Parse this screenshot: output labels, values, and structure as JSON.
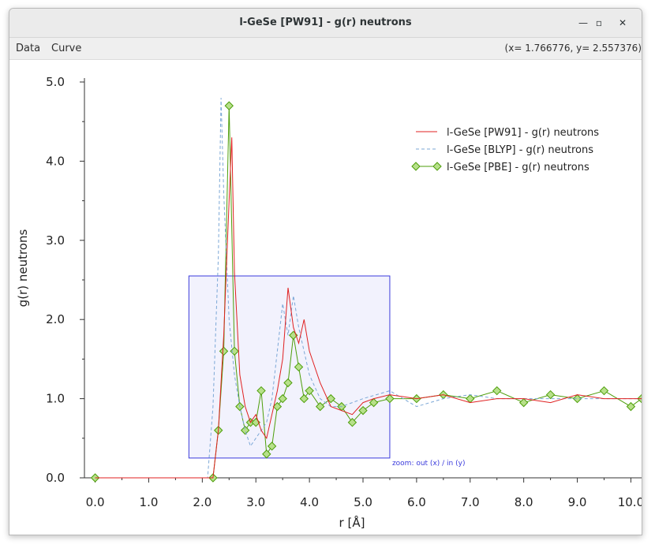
{
  "window": {
    "title": "l-GeSe [PW91] - g(r) neutrons"
  },
  "menu": {
    "items": [
      "Data",
      "Curve"
    ]
  },
  "status": {
    "coords": "(x= 1.766776, y= 2.557376)"
  },
  "zoom_label": "zoom: out (x) / in (y)",
  "zoom_box": {
    "x": [
      1.75,
      5.5
    ],
    "y": [
      0.25,
      2.55
    ]
  },
  "colors": {
    "pw91": "#e02020",
    "blyp": "#7ba7d6",
    "pbe": "#4d9e0a",
    "pbe_marker": "#b7e08a",
    "zoom": "#3b3bdc"
  },
  "chart_data": {
    "type": "line",
    "xlabel": "r [Å]",
    "ylabel": "g(r) neutrons",
    "xlim": [
      -0.2,
      10.2
    ],
    "ylim": [
      0.0,
      5.0
    ],
    "xticks": [
      "0.0",
      "1.0",
      "2.0",
      "3.0",
      "4.0",
      "5.0",
      "6.0",
      "7.0",
      "8.0",
      "9.0",
      "10.0"
    ],
    "yticks": [
      "0.0",
      "1.0",
      "2.0",
      "3.0",
      "4.0",
      "5.0"
    ],
    "legend_position": "top-right",
    "series": [
      {
        "name": "l-GeSe [PW91] - g(r) neutrons",
        "style": "solid",
        "x": [
          0.0,
          2.2,
          2.3,
          2.4,
          2.5,
          2.55,
          2.6,
          2.7,
          2.8,
          2.9,
          3.0,
          3.1,
          3.2,
          3.3,
          3.4,
          3.5,
          3.6,
          3.7,
          3.8,
          3.9,
          4.0,
          4.2,
          4.4,
          4.6,
          4.8,
          5.0,
          5.2,
          5.5,
          6.0,
          6.5,
          7.0,
          7.5,
          8.0,
          8.5,
          9.0,
          9.5,
          10.0,
          10.2
        ],
        "y": [
          0.0,
          0.0,
          0.6,
          1.8,
          3.5,
          4.3,
          2.6,
          1.3,
          0.9,
          0.7,
          0.8,
          0.6,
          0.5,
          0.8,
          1.1,
          1.5,
          2.4,
          1.9,
          1.7,
          2.0,
          1.6,
          1.2,
          0.9,
          0.85,
          0.8,
          0.95,
          1.0,
          1.05,
          1.0,
          1.05,
          0.95,
          1.0,
          1.0,
          0.95,
          1.05,
          1.0,
          1.0,
          1.0
        ]
      },
      {
        "name": "l-GeSe [BLYP] - g(r) neutrons",
        "style": "dashed",
        "x": [
          0.0,
          2.1,
          2.2,
          2.3,
          2.35,
          2.4,
          2.5,
          2.6,
          2.7,
          2.8,
          2.9,
          3.0,
          3.1,
          3.2,
          3.3,
          3.4,
          3.5,
          3.6,
          3.7,
          3.8,
          3.9,
          4.0,
          4.2,
          4.4,
          4.6,
          4.8,
          5.0,
          5.5,
          6.0,
          6.5,
          7.0,
          7.5,
          8.0,
          8.5,
          9.0,
          9.5,
          10.0,
          10.2
        ],
        "y": [
          0.0,
          0.0,
          0.9,
          2.8,
          4.8,
          3.6,
          2.0,
          1.3,
          0.9,
          0.6,
          0.4,
          0.5,
          0.6,
          0.7,
          1.0,
          1.6,
          2.2,
          1.8,
          2.3,
          1.9,
          1.6,
          1.3,
          1.0,
          0.9,
          0.9,
          0.95,
          1.0,
          1.1,
          0.9,
          1.0,
          1.05,
          1.0,
          1.0,
          1.0,
          1.0,
          1.0,
          1.0,
          1.0
        ]
      },
      {
        "name": "l-GeSe [PBE] - g(r) neutrons",
        "style": "solid-marker",
        "x": [
          0.0,
          2.2,
          2.3,
          2.4,
          2.5,
          2.6,
          2.7,
          2.8,
          2.9,
          3.0,
          3.1,
          3.2,
          3.3,
          3.4,
          3.5,
          3.6,
          3.7,
          3.8,
          3.9,
          4.0,
          4.2,
          4.4,
          4.6,
          4.8,
          5.0,
          5.2,
          5.5,
          6.0,
          6.5,
          7.0,
          7.5,
          8.0,
          8.5,
          9.0,
          9.5,
          10.0,
          10.2
        ],
        "y": [
          0.0,
          0.0,
          0.6,
          1.6,
          4.7,
          1.6,
          0.9,
          0.6,
          0.7,
          0.7,
          1.1,
          0.3,
          0.4,
          0.9,
          1.0,
          1.2,
          1.8,
          1.4,
          1.0,
          1.1,
          0.9,
          1.0,
          0.9,
          0.7,
          0.85,
          0.95,
          1.0,
          1.0,
          1.05,
          1.0,
          1.1,
          0.95,
          1.05,
          1.0,
          1.1,
          0.9,
          1.0
        ]
      }
    ]
  }
}
